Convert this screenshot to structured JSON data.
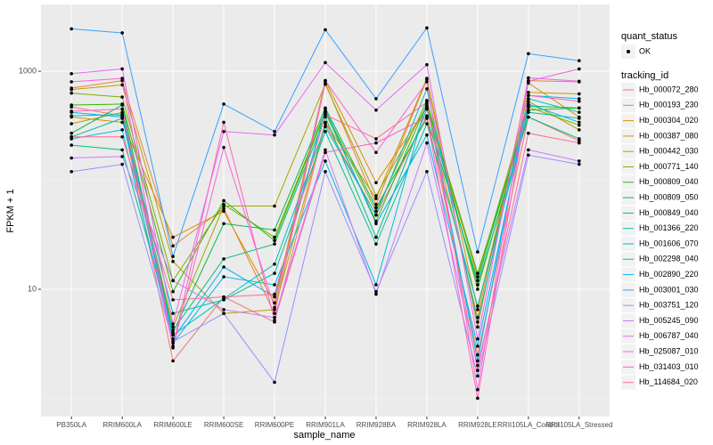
{
  "chart_data": {
    "type": "line",
    "x_label": "sample_name",
    "y_label": "FPKM + 1",
    "log_y": true,
    "grid": true,
    "categories": [
      "PB350LA",
      "RRIM600LA",
      "RRIM600LE",
      "RRIM600SE",
      "RRIM600PE",
      "RRIM901LA",
      "RRIM928BA",
      "RRIM928LA",
      "RRIM928LE",
      "RRII105LA_Control",
      "RRII105LA_Stressed"
    ],
    "ylim": [
      0.68,
      4100
    ],
    "yticks": [
      10,
      1000
    ],
    "status_title": "quant_status",
    "status_values": [
      "OK"
    ],
    "legend_title": "tracking_id",
    "series": [
      {
        "name": "Hb_000072_280",
        "color": "#F8766D",
        "values": [
          470,
          390,
          2.2,
          8.5,
          5.0,
          330,
          48,
          390,
          2.5,
          380,
          230
        ]
      },
      {
        "name": "Hb_000193_230",
        "color": "#EA8331",
        "values": [
          700,
          820,
          25,
          55,
          6.0,
          780,
          60,
          840,
          4.5,
          820,
          800
        ]
      },
      {
        "name": "Hb_000304_020",
        "color": "#D89000",
        "values": [
          380,
          340,
          30,
          52,
          7.5,
          820,
          95,
          460,
          5.5,
          780,
          380
        ]
      },
      {
        "name": "Hb_000387_080",
        "color": "#C09B00",
        "values": [
          680,
          750,
          18,
          6.0,
          6.5,
          340,
          68,
          860,
          6.5,
          640,
          620
        ]
      },
      {
        "name": "Hb_000442_030",
        "color": "#A3A500",
        "values": [
          330,
          420,
          4.5,
          58,
          58,
          760,
          72,
          480,
          13,
          530,
          290
        ]
      },
      {
        "name": "Hb_000771_140",
        "color": "#7CAE00",
        "values": [
          630,
          580,
          12,
          60,
          30,
          430,
          52,
          540,
          10,
          470,
          320
        ]
      },
      {
        "name": "Hb_000809_040",
        "color": "#39B600",
        "values": [
          490,
          500,
          9.5,
          65,
          28,
          420,
          42,
          500,
          14,
          440,
          460
        ]
      },
      {
        "name": "Hb_000809_050",
        "color": "#00BB4E",
        "values": [
          270,
          490,
          4.0,
          40,
          35,
          460,
          56,
          370,
          12,
          480,
          460
        ]
      },
      {
        "name": "Hb_000849_040",
        "color": "#00BF7D",
        "values": [
          210,
          190,
          4.2,
          19,
          26,
          380,
          30,
          450,
          11,
          380,
          240
        ]
      },
      {
        "name": "Hb_001366_220",
        "color": "#00C1A3",
        "values": [
          250,
          370,
          6.0,
          8.0,
          14,
          280,
          26,
          330,
          7.0,
          420,
          370
        ]
      },
      {
        "name": "Hb_001606_070",
        "color": "#00BFC4",
        "values": [
          390,
          400,
          3.8,
          8.2,
          17,
          310,
          48,
          690,
          5.0,
          560,
          420
        ]
      },
      {
        "name": "Hb_002298_040",
        "color": "#00BAE0",
        "values": [
          240,
          290,
          3.2,
          13,
          11,
          150,
          11,
          530,
          2.2,
          600,
          560
        ]
      },
      {
        "name": "Hb_002890_220",
        "color": "#00B0F6",
        "values": [
          420,
          380,
          3.5,
          16,
          8.5,
          450,
          40,
          260,
          3.0,
          500,
          340
        ]
      },
      {
        "name": "Hb_003001_030",
        "color": "#35A2FF",
        "values": [
          2450,
          2250,
          20,
          500,
          280,
          2400,
          560,
          2500,
          22,
          1450,
          1250
        ]
      },
      {
        "name": "Hb_003751_120",
        "color": "#9590FF",
        "values": [
          120,
          140,
          3.3,
          6.0,
          1.4,
          120,
          9.5,
          120,
          1.6,
          170,
          140
        ]
      },
      {
        "name": "Hb_005245_090",
        "color": "#C77CFF",
        "values": [
          160,
          165,
          12,
          6.5,
          5.5,
          190,
          9.0,
          220,
          2.0,
          190,
          150
        ]
      },
      {
        "name": "Hb_006787_040",
        "color": "#E76BF3",
        "values": [
          950,
          1050,
          4.8,
          280,
          260,
          1200,
          440,
          1150,
          3.5,
          870,
          810
        ]
      },
      {
        "name": "Hb_025087_010",
        "color": "#FA62DB",
        "values": [
          800,
          860,
          2.9,
          200,
          6.8,
          820,
          180,
          800,
          1.2,
          810,
          1050
        ]
      },
      {
        "name": "Hb_031403_010",
        "color": "#FF62BC",
        "values": [
          430,
          450,
          3.0,
          340,
          5.2,
          180,
          220,
          380,
          1.0,
          600,
          530
        ]
      },
      {
        "name": "Hb_114684_020",
        "color": "#FF6C91",
        "values": [
          250,
          250,
          8.0,
          8.5,
          9.0,
          400,
          240,
          520,
          1.8,
          270,
          220
        ]
      }
    ]
  }
}
